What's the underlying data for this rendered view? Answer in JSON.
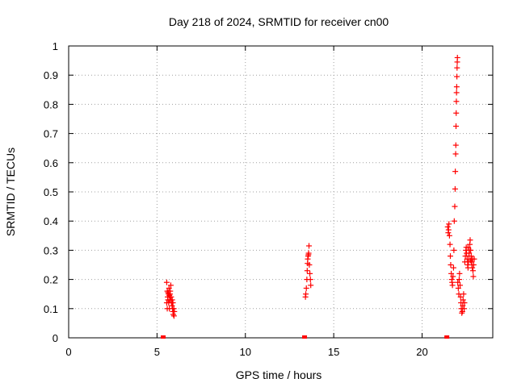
{
  "chart_data": {
    "type": "scatter",
    "title": "Day 218 of 2024, SRMTID for receiver cn00",
    "xlabel": "GPS time / hours",
    "ylabel": "SRMTID / TECUs",
    "xlim": [
      0,
      24
    ],
    "ylim": [
      0,
      1
    ],
    "x_ticks": [
      0,
      5,
      10,
      15,
      20
    ],
    "x_tick_labels": [
      "0",
      "5",
      "10",
      "15",
      "20"
    ],
    "y_ticks": [
      0,
      0.1,
      0.2,
      0.3,
      0.4,
      0.5,
      0.6,
      0.7,
      0.8,
      0.9,
      1
    ],
    "y_tick_labels": [
      "0",
      "0.1",
      "0.2",
      "0.3",
      "0.4",
      "0.5",
      "0.6",
      "0.7",
      "0.8",
      "0.9",
      "1"
    ],
    "grid": true,
    "marker": "plus",
    "color": "#ff0000",
    "series": [
      {
        "name": "SRMTID",
        "points": [
          [
            5.55,
            0.19
          ],
          [
            5.58,
            0.16
          ],
          [
            5.6,
            0.14
          ],
          [
            5.62,
            0.13
          ],
          [
            5.55,
            0.12
          ],
          [
            5.58,
            0.1
          ],
          [
            5.65,
            0.15
          ],
          [
            5.68,
            0.17
          ],
          [
            5.7,
            0.145
          ],
          [
            5.72,
            0.13
          ],
          [
            5.75,
            0.16
          ],
          [
            5.78,
            0.18
          ],
          [
            5.8,
            0.14
          ],
          [
            5.82,
            0.12
          ],
          [
            5.85,
            0.11
          ],
          [
            5.88,
            0.1
          ],
          [
            5.9,
            0.09
          ],
          [
            5.92,
            0.08
          ],
          [
            5.95,
            0.1
          ],
          [
            5.98,
            0.09
          ],
          [
            5.7,
            0.1
          ],
          [
            5.75,
            0.13
          ],
          [
            5.62,
            0.155
          ],
          [
            5.66,
            0.12
          ],
          [
            5.74,
            0.15
          ],
          [
            5.86,
            0.13
          ],
          [
            5.9,
            0.12
          ],
          [
            5.96,
            0.075
          ],
          [
            13.4,
            0.14
          ],
          [
            13.42,
            0.15
          ],
          [
            13.45,
            0.17
          ],
          [
            13.48,
            0.2
          ],
          [
            13.5,
            0.23
          ],
          [
            13.52,
            0.255
          ],
          [
            13.55,
            0.28
          ],
          [
            13.58,
            0.29
          ],
          [
            13.6,
            0.315
          ],
          [
            13.62,
            0.25
          ],
          [
            13.65,
            0.22
          ],
          [
            13.68,
            0.2
          ],
          [
            13.7,
            0.18
          ],
          [
            13.53,
            0.27
          ],
          [
            13.57,
            0.285
          ],
          [
            21.45,
            0.38
          ],
          [
            21.48,
            0.36
          ],
          [
            21.5,
            0.37
          ],
          [
            21.52,
            0.39
          ],
          [
            21.55,
            0.35
          ],
          [
            21.58,
            0.32
          ],
          [
            21.6,
            0.28
          ],
          [
            21.62,
            0.25
          ],
          [
            21.65,
            0.22
          ],
          [
            21.68,
            0.2
          ],
          [
            21.7,
            0.19
          ],
          [
            21.72,
            0.18
          ],
          [
            21.75,
            0.21
          ],
          [
            21.78,
            0.24
          ],
          [
            21.8,
            0.3
          ],
          [
            21.82,
            0.4
          ],
          [
            21.85,
            0.45
          ],
          [
            21.87,
            0.51
          ],
          [
            21.88,
            0.57
          ],
          [
            21.9,
            0.63
          ],
          [
            21.91,
            0.66
          ],
          [
            21.92,
            0.725
          ],
          [
            21.93,
            0.77
          ],
          [
            21.94,
            0.81
          ],
          [
            21.95,
            0.84
          ],
          [
            21.96,
            0.86
          ],
          [
            21.97,
            0.895
          ],
          [
            21.98,
            0.925
          ],
          [
            21.99,
            0.945
          ],
          [
            22.0,
            0.96
          ],
          [
            22.02,
            0.19
          ],
          [
            22.05,
            0.17
          ],
          [
            22.08,
            0.15
          ],
          [
            22.1,
            0.2
          ],
          [
            22.12,
            0.22
          ],
          [
            22.15,
            0.18
          ],
          [
            22.18,
            0.14
          ],
          [
            22.2,
            0.12
          ],
          [
            22.22,
            0.1
          ],
          [
            22.25,
            0.085
          ],
          [
            22.28,
            0.09
          ],
          [
            22.3,
            0.11
          ],
          [
            22.32,
            0.13
          ],
          [
            22.35,
            0.15
          ],
          [
            22.38,
            0.1
          ],
          [
            22.4,
            0.12
          ],
          [
            22.42,
            0.26
          ],
          [
            22.45,
            0.28
          ],
          [
            22.48,
            0.3
          ],
          [
            22.5,
            0.31
          ],
          [
            22.52,
            0.29
          ],
          [
            22.55,
            0.27
          ],
          [
            22.58,
            0.25
          ],
          [
            22.6,
            0.24
          ],
          [
            22.62,
            0.26
          ],
          [
            22.65,
            0.28
          ],
          [
            22.68,
            0.3
          ],
          [
            22.7,
            0.32
          ],
          [
            22.72,
            0.335
          ],
          [
            22.75,
            0.3
          ],
          [
            22.78,
            0.28
          ],
          [
            22.8,
            0.26
          ],
          [
            22.82,
            0.25
          ],
          [
            22.85,
            0.27
          ],
          [
            22.88,
            0.23
          ],
          [
            22.9,
            0.21
          ],
          [
            22.92,
            0.25
          ],
          [
            22.95,
            0.27
          ],
          [
            22.6,
            0.31
          ],
          [
            22.66,
            0.29
          ],
          [
            22.74,
            0.265
          ],
          [
            22.84,
            0.24
          ]
        ]
      }
    ],
    "zero_marks": [
      5.35,
      13.35,
      21.4
    ]
  }
}
